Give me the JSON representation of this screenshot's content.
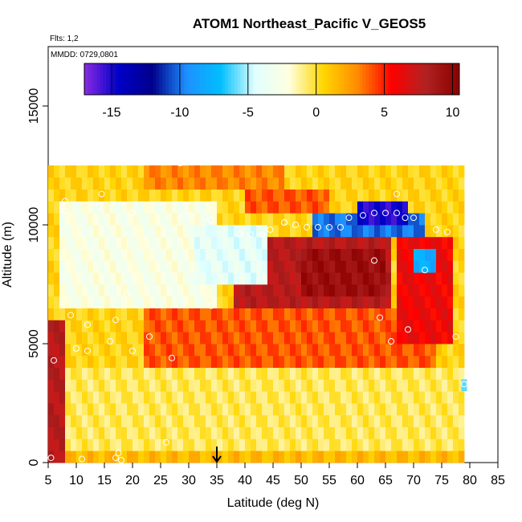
{
  "chart_data": {
    "type": "heatmap",
    "title": "ATOM1 Northeast_Pacific V_GEOS5",
    "notes": {
      "flights": "Flts: 1,2",
      "dates": "MMDD: 0729,0801"
    },
    "xlabel": "Latitude (deg N)",
    "ylabel": "Altitude (m)",
    "xlim": [
      5,
      85
    ],
    "ylim": [
      0,
      17500
    ],
    "x_ticks": [
      5,
      10,
      15,
      20,
      25,
      30,
      35,
      40,
      45,
      50,
      55,
      60,
      65,
      70,
      75,
      80,
      85
    ],
    "y_ticks": [
      0,
      5000,
      10000,
      15000
    ],
    "colorbar": {
      "range": [
        -17,
        10.5
      ],
      "ticks": [
        -15,
        -10,
        -5,
        0,
        5,
        10
      ],
      "colors": [
        "#8a2be2",
        "#0000c8",
        "#00008b",
        "#1e90ff",
        "#00bfff",
        "#e0ffff",
        "#ffffe0",
        "#ffd700",
        "#ff8c00",
        "#ff0000",
        "#b22222",
        "#8b0000"
      ]
    },
    "marker": {
      "x": 35,
      "label": "arrow"
    },
    "grid": {
      "lat_bins": [
        5,
        6,
        7,
        8,
        9,
        10,
        11,
        12,
        13,
        14,
        15,
        16,
        17,
        18,
        19,
        20,
        21,
        22,
        23,
        24,
        25,
        26,
        27,
        28,
        29,
        30,
        31,
        32,
        33,
        34,
        35,
        36,
        37,
        38,
        39,
        40,
        41,
        42,
        43,
        44,
        45,
        46,
        47,
        48,
        49,
        50,
        51,
        52,
        53,
        54,
        55,
        56,
        57,
        58,
        59,
        60,
        61,
        62,
        63,
        64,
        65,
        66,
        67,
        68,
        69,
        70,
        71,
        72,
        73,
        74,
        75,
        76,
        77,
        78
      ],
      "alt_step_m": 500
    },
    "regions": [
      {
        "name": "background",
        "lat": [
          5,
          79
        ],
        "alt": [
          0,
          12500
        ],
        "value": 0.5
      },
      {
        "name": "upper-warm-band",
        "lat": [
          22,
          47
        ],
        "alt": [
          11500,
          12500
        ],
        "value": 3
      },
      {
        "name": "upper-east-band",
        "lat": [
          40,
          55
        ],
        "alt": [
          10500,
          11500
        ],
        "value": 4
      },
      {
        "name": "jet-core",
        "lat": [
          38,
          66
        ],
        "alt": [
          5500,
          9500
        ],
        "value": 8
      },
      {
        "name": "jet-max",
        "lat": [
          50,
          65
        ],
        "alt": [
          7000,
          9000
        ],
        "value": 9.5
      },
      {
        "name": "jet-lower",
        "lat": [
          22,
          74
        ],
        "alt": [
          4000,
          6500
        ],
        "value": 4
      },
      {
        "name": "negative-band",
        "lat": [
          52,
          72
        ],
        "alt": [
          9500,
          10500
        ],
        "value": -10
      },
      {
        "name": "negative-core",
        "lat": [
          60,
          69
        ],
        "alt": [
          10000,
          10800
        ],
        "value": -15
      },
      {
        "name": "east-red",
        "lat": [
          67,
          77
        ],
        "alt": [
          5000,
          9500
        ],
        "value": 6
      },
      {
        "name": "low-south-red",
        "lat": [
          5,
          8
        ],
        "alt": [
          0,
          6000
        ],
        "value": 8
      },
      {
        "name": "lower-neutral",
        "lat": [
          8,
          79
        ],
        "alt": [
          500,
          4000
        ],
        "value": -0.5
      },
      {
        "name": "west-neg-mid",
        "lat": [
          7,
          35
        ],
        "alt": [
          6500,
          11000
        ],
        "value": -2.5
      },
      {
        "name": "west-neg-pocket",
        "lat": [
          31,
          44
        ],
        "alt": [
          7500,
          10000
        ],
        "value": -4
      },
      {
        "name": "east-blue-spot",
        "lat": [
          70,
          74
        ],
        "alt": [
          8000,
          9000
        ],
        "value": -8
      },
      {
        "name": "near-surface",
        "lat": [
          8,
          79
        ],
        "alt": [
          0,
          500
        ],
        "value": 1.5
      }
    ],
    "points": [
      {
        "lat": 5.5,
        "alt": 200
      },
      {
        "lat": 11,
        "alt": 150
      },
      {
        "lat": 17,
        "alt": 200
      },
      {
        "lat": 17.5,
        "alt": 400
      },
      {
        "lat": 18,
        "alt": 100
      },
      {
        "lat": 26,
        "alt": 850
      },
      {
        "lat": 6,
        "alt": 4300
      },
      {
        "lat": 10,
        "alt": 4800
      },
      {
        "lat": 12,
        "alt": 4700
      },
      {
        "lat": 9,
        "alt": 6200
      },
      {
        "lat": 12,
        "alt": 5800
      },
      {
        "lat": 16,
        "alt": 5100
      },
      {
        "lat": 17,
        "alt": 6000
      },
      {
        "lat": 20,
        "alt": 4700
      },
      {
        "lat": 23,
        "alt": 5300
      },
      {
        "lat": 27,
        "alt": 4400
      },
      {
        "lat": 19,
        "alt": 7100
      },
      {
        "lat": 34,
        "alt": 6600
      },
      {
        "lat": 8,
        "alt": 11000
      },
      {
        "lat": 8,
        "alt": 10600
      },
      {
        "lat": 14.5,
        "alt": 11300
      },
      {
        "lat": 14,
        "alt": 10800
      },
      {
        "lat": 20,
        "alt": 10500
      },
      {
        "lat": 29,
        "alt": 10400
      },
      {
        "lat": 30.5,
        "alt": 10400
      },
      {
        "lat": 33,
        "alt": 10300
      },
      {
        "lat": 34,
        "alt": 10200
      },
      {
        "lat": 28.5,
        "alt": 12600
      },
      {
        "lat": 30.5,
        "alt": 12700
      },
      {
        "lat": 39,
        "alt": 9600
      },
      {
        "lat": 41,
        "alt": 9600
      },
      {
        "lat": 43,
        "alt": 9600
      },
      {
        "lat": 44.5,
        "alt": 9800
      },
      {
        "lat": 47,
        "alt": 10100
      },
      {
        "lat": 49,
        "alt": 10000
      },
      {
        "lat": 51,
        "alt": 9900
      },
      {
        "lat": 53,
        "alt": 9900
      },
      {
        "lat": 55,
        "alt": 9900
      },
      {
        "lat": 57,
        "alt": 9900
      },
      {
        "lat": 58.5,
        "alt": 10300
      },
      {
        "lat": 61,
        "alt": 10400
      },
      {
        "lat": 63,
        "alt": 10500
      },
      {
        "lat": 65,
        "alt": 10500
      },
      {
        "lat": 67,
        "alt": 10500
      },
      {
        "lat": 68.5,
        "alt": 10300
      },
      {
        "lat": 70,
        "alt": 10300
      },
      {
        "lat": 67,
        "alt": 11300
      },
      {
        "lat": 74,
        "alt": 9800
      },
      {
        "lat": 76,
        "alt": 9700
      },
      {
        "lat": 63,
        "alt": 8500
      },
      {
        "lat": 72,
        "alt": 8100
      },
      {
        "lat": 64,
        "alt": 6100
      },
      {
        "lat": 66,
        "alt": 5100
      },
      {
        "lat": 69,
        "alt": 5600
      },
      {
        "lat": 77.5,
        "alt": 5300
      },
      {
        "lat": 79,
        "alt": 3300
      }
    ]
  }
}
